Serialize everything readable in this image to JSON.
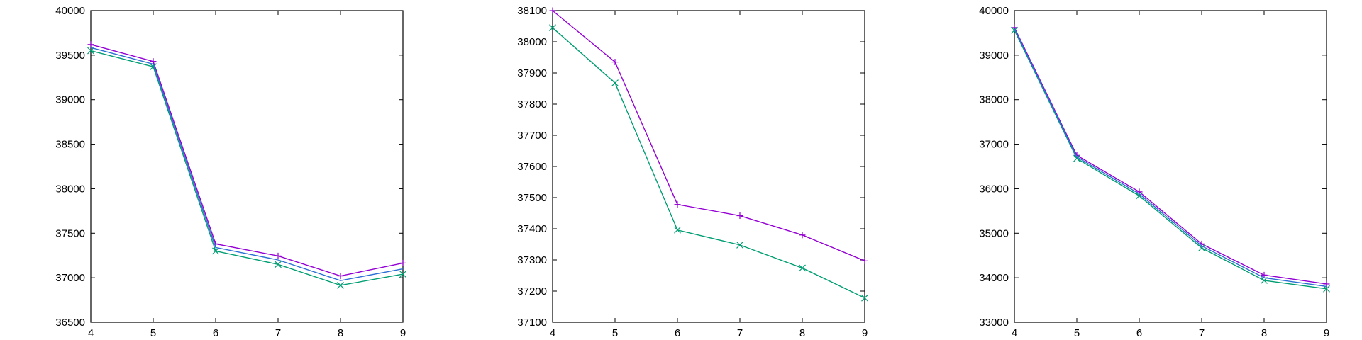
{
  "chart_data": [
    {
      "type": "line",
      "title": "",
      "xlabel": "",
      "ylabel": "",
      "xlim": [
        4,
        9
      ],
      "ylim": [
        36500,
        40000
      ],
      "x": [
        4,
        5,
        6,
        7,
        8,
        9
      ],
      "xticks": [
        4,
        5,
        6,
        7,
        8,
        9
      ],
      "yticks": [
        36500,
        37000,
        37500,
        38000,
        38500,
        39000,
        39500,
        40000
      ],
      "grid": false,
      "legend": "none",
      "series": [
        {
          "values": [
            39620,
            39430,
            37380,
            37245,
            37020,
            37165
          ],
          "color": "#9400d3",
          "marker": "plus"
        },
        {
          "values": [
            39550,
            39370,
            37300,
            37150,
            36915,
            37040
          ],
          "color": "#009e73",
          "marker": "cross"
        },
        {
          "values": [
            39585,
            39400,
            37340,
            37200,
            36968,
            37100
          ],
          "color": "#2b6fd6",
          "marker": "none"
        }
      ]
    },
    {
      "type": "line",
      "title": "",
      "xlabel": "",
      "ylabel": "",
      "xlim": [
        4,
        9
      ],
      "ylim": [
        37100,
        38100
      ],
      "x": [
        4,
        5,
        6,
        7,
        8,
        9
      ],
      "xticks": [
        4,
        5,
        6,
        7,
        8,
        9
      ],
      "yticks": [
        37100,
        37200,
        37300,
        37400,
        37500,
        37600,
        37700,
        37800,
        37900,
        38000,
        38100
      ],
      "grid": false,
      "legend": "none",
      "series": [
        {
          "values": [
            38100,
            37935,
            37478,
            37442,
            37380,
            37297
          ],
          "color": "#9400d3",
          "marker": "plus"
        },
        {
          "values": [
            38045,
            37868,
            37396,
            37348,
            37274,
            37178
          ],
          "color": "#009e73",
          "marker": "cross"
        }
      ]
    },
    {
      "type": "line",
      "title": "",
      "xlabel": "",
      "ylabel": "",
      "xlim": [
        4,
        9
      ],
      "ylim": [
        33000,
        40000
      ],
      "x": [
        4,
        5,
        6,
        7,
        8,
        9
      ],
      "xticks": [
        4,
        5,
        6,
        7,
        8,
        9
      ],
      "yticks": [
        33000,
        34000,
        35000,
        36000,
        37000,
        38000,
        39000,
        40000
      ],
      "grid": false,
      "legend": "none",
      "series": [
        {
          "values": [
            39620,
            36750,
            35930,
            34760,
            34060,
            33860
          ],
          "color": "#9400d3",
          "marker": "plus"
        },
        {
          "values": [
            39560,
            36680,
            35840,
            34670,
            33940,
            33750
          ],
          "color": "#009e73",
          "marker": "cross"
        },
        {
          "values": [
            39590,
            36715,
            35885,
            34715,
            34000,
            33805
          ],
          "color": "#2b6fd6",
          "marker": "none"
        }
      ]
    }
  ]
}
